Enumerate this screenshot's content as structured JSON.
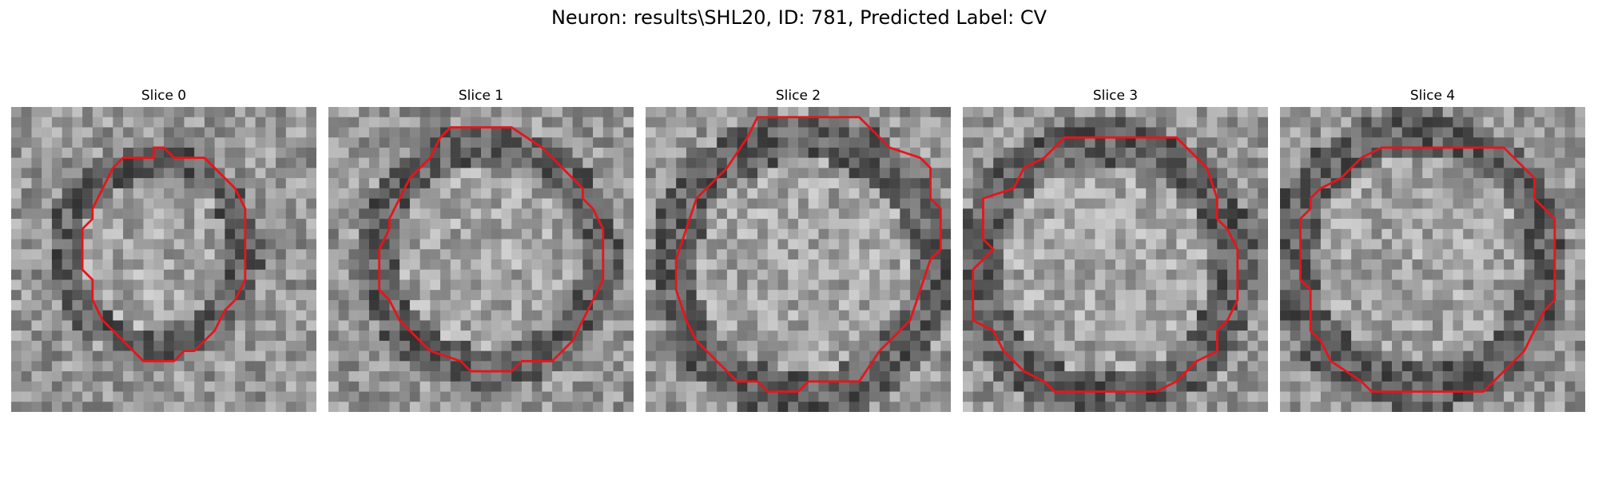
{
  "figure": {
    "title": "Neuron: results\\SHL20, ID: 781, Predicted Label: CV"
  },
  "contour_color": "#e8141a",
  "panels": [
    {
      "title": "Slice 0",
      "contour": [
        [
          14,
          4
        ],
        [
          15,
          4
        ],
        [
          16,
          5
        ],
        [
          19,
          5
        ],
        [
          22,
          8
        ],
        [
          23,
          10
        ],
        [
          23,
          17
        ],
        [
          22,
          19
        ],
        [
          21,
          20
        ],
        [
          20,
          22
        ],
        [
          18,
          24
        ],
        [
          17,
          24
        ],
        [
          16,
          25
        ],
        [
          13,
          25
        ],
        [
          12,
          24
        ],
        [
          11,
          23
        ],
        [
          9,
          21
        ],
        [
          8,
          19
        ],
        [
          8,
          17
        ],
        [
          7,
          16
        ],
        [
          7,
          12
        ],
        [
          8,
          11
        ],
        [
          8,
          10
        ],
        [
          9,
          8
        ],
        [
          10,
          6
        ],
        [
          11,
          5
        ],
        [
          14,
          5
        ]
      ]
    },
    {
      "title": "Slice 1",
      "contour": [
        [
          12,
          2
        ],
        [
          18,
          2
        ],
        [
          21,
          4
        ],
        [
          22,
          5
        ],
        [
          25,
          8
        ],
        [
          25,
          9
        ],
        [
          26,
          10
        ],
        [
          27,
          12
        ],
        [
          27,
          17
        ],
        [
          26,
          19
        ],
        [
          25,
          21
        ],
        [
          24,
          23
        ],
        [
          22,
          25
        ],
        [
          19,
          25
        ],
        [
          18,
          26
        ],
        [
          14,
          26
        ],
        [
          13,
          25
        ],
        [
          10,
          24
        ],
        [
          9,
          23
        ],
        [
          7,
          21
        ],
        [
          6,
          19
        ],
        [
          5,
          18
        ],
        [
          5,
          14
        ],
        [
          6,
          12
        ],
        [
          6,
          11
        ],
        [
          7,
          9
        ],
        [
          8,
          7
        ],
        [
          10,
          5
        ],
        [
          11,
          3
        ]
      ]
    },
    {
      "title": "Slice 2",
      "contour": [
        [
          11,
          1
        ],
        [
          21,
          1
        ],
        [
          24,
          4
        ],
        [
          27,
          5
        ],
        [
          28,
          6
        ],
        [
          28,
          9
        ],
        [
          29,
          10
        ],
        [
          29,
          14
        ],
        [
          28,
          15
        ],
        [
          27,
          18
        ],
        [
          26,
          21
        ],
        [
          23,
          24
        ],
        [
          21,
          27
        ],
        [
          16,
          27
        ],
        [
          15,
          28
        ],
        [
          12,
          28
        ],
        [
          11,
          27
        ],
        [
          9,
          27
        ],
        [
          8,
          26
        ],
        [
          7,
          25
        ],
        [
          5,
          23
        ],
        [
          4,
          21
        ],
        [
          3,
          18
        ],
        [
          3,
          15
        ],
        [
          4,
          12
        ],
        [
          5,
          9
        ],
        [
          7,
          7
        ],
        [
          8,
          6
        ],
        [
          10,
          3
        ]
      ]
    },
    {
      "title": "Slice 3",
      "contour": [
        [
          10,
          3
        ],
        [
          21,
          3
        ],
        [
          23,
          5
        ],
        [
          24,
          6
        ],
        [
          25,
          9
        ],
        [
          25,
          11
        ],
        [
          26,
          12
        ],
        [
          27,
          14
        ],
        [
          27,
          19
        ],
        [
          26,
          21
        ],
        [
          25,
          22
        ],
        [
          25,
          24
        ],
        [
          23,
          25
        ],
        [
          21,
          27
        ],
        [
          19,
          28
        ],
        [
          9,
          28
        ],
        [
          8,
          27
        ],
        [
          6,
          26
        ],
        [
          4,
          24
        ],
        [
          3,
          22
        ],
        [
          1,
          21
        ],
        [
          1,
          16
        ],
        [
          2,
          15
        ],
        [
          3,
          14
        ],
        [
          2,
          13
        ],
        [
          2,
          9
        ],
        [
          5,
          8
        ],
        [
          6,
          6
        ],
        [
          8,
          5
        ]
      ]
    },
    {
      "title": "Slice 4",
      "contour": [
        [
          10,
          4
        ],
        [
          22,
          4
        ],
        [
          24,
          6
        ],
        [
          25,
          7
        ],
        [
          25,
          9
        ],
        [
          26,
          10
        ],
        [
          27,
          11
        ],
        [
          27,
          19
        ],
        [
          26,
          20
        ],
        [
          25,
          22
        ],
        [
          24,
          24
        ],
        [
          21,
          27
        ],
        [
          20,
          28
        ],
        [
          9,
          28
        ],
        [
          8,
          27
        ],
        [
          5,
          25
        ],
        [
          4,
          23
        ],
        [
          3,
          22
        ],
        [
          3,
          18
        ],
        [
          2,
          17
        ],
        [
          2,
          11
        ],
        [
          3,
          10
        ],
        [
          3,
          9
        ],
        [
          4,
          8
        ],
        [
          6,
          7
        ],
        [
          7,
          6
        ],
        [
          8,
          5
        ]
      ]
    }
  ]
}
